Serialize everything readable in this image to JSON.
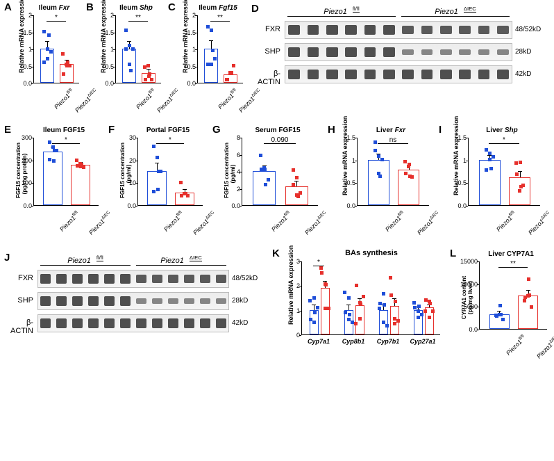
{
  "colors": {
    "group1_border": "#1f4ed8",
    "group1_fill_open": "#ffffff",
    "group2_border": "#e6302c",
    "group2_fill_open": "#ffffff",
    "dot1": "#1f4ed8",
    "dot2": "#e6302c"
  },
  "groups": {
    "g1_html": "<span class='gene-italic'>Piezo1</span><span class='sup'>fl/fl</span>",
    "g2_html": "<span class='gene-italic'>Piezo1</span><span class='sup'>ΔIEC</span>"
  },
  "panelA": {
    "label": "A",
    "title": "Ileum <span class='gene-italic'>Fxr</span>",
    "ylabel": "Relative mRNA expression",
    "ylim": [
      0,
      2.0
    ],
    "ytick_step": 0.5,
    "bars": [
      {
        "mean": 1.0,
        "err": 0.2,
        "points": [
          1.5,
          1.0,
          0.9,
          0.6,
          0.7,
          1.4
        ]
      },
      {
        "mean": 0.55,
        "err": 0.1,
        "points": [
          0.85,
          0.55,
          0.5,
          0.25,
          0.5,
          0.6
        ]
      }
    ],
    "sig": "*"
  },
  "panelB": {
    "label": "B",
    "title": "Ileum <span class='gene-italic'>Shp</span>",
    "ylabel": "Relative mRNA expression",
    "ylim": [
      0,
      2.0
    ],
    "ytick_step": 0.5,
    "bars": [
      {
        "mean": 1.0,
        "err": 0.2,
        "points": [
          1.55,
          1.1,
          1.0,
          1.0,
          0.55,
          0.35
        ]
      },
      {
        "mean": 0.28,
        "err": 0.1,
        "points": [
          0.45,
          0.5,
          0.1,
          0.1,
          0.2,
          0.25
        ]
      }
    ],
    "sig": "**"
  },
  "panelC": {
    "label": "C",
    "title": "Ileum <span class='gene-italic'>Fgf15</span>",
    "ylabel": "Relative mRNA expression",
    "ylim": [
      0,
      2.0
    ],
    "ytick_step": 0.5,
    "bars": [
      {
        "mean": 1.0,
        "err": 0.22,
        "points": [
          1.65,
          1.55,
          0.7,
          0.55,
          0.55,
          0.95
        ]
      },
      {
        "mean": 0.25,
        "err": 0.08,
        "points": [
          0.1,
          0.3,
          0.5,
          0.1,
          0.3,
          0.3
        ]
      }
    ],
    "sig": "**"
  },
  "panelD": {
    "label": "D",
    "headers": [
      "<span class='gene-italic'>Piezo1</span><span class='sup'>fl/fl</span>",
      "<span class='gene-italic'>Piezo1</span><span class='sup'>ΔIEC</span>"
    ],
    "rows": [
      {
        "name": "FXR",
        "kd": "48/52kD"
      },
      {
        "name": "SHP",
        "kd": "28kD"
      },
      {
        "name": "β-ACTIN",
        "kd": "42kD"
      }
    ],
    "lanes": 12
  },
  "panelE": {
    "label": "E",
    "title": "Ileum FGF15",
    "ylabel": "FGF15 concentration<br>(pg/mg protein)",
    "ylim": [
      0,
      300
    ],
    "ytick_step": 100,
    "bars": [
      {
        "mean": 235,
        "err": 20,
        "points": [
          278,
          255,
          240,
          200,
          195,
          240
        ]
      },
      {
        "mean": 178,
        "err": 10,
        "points": [
          196,
          182,
          168,
          172,
          170,
          180
        ]
      }
    ],
    "sig": "*"
  },
  "panelF": {
    "label": "F",
    "title": "Portal FGF15",
    "ylabel": "FGF15 concentration<br>(pg/ml)",
    "ylim": [
      0,
      30
    ],
    "ytick_step": 10,
    "bars": [
      {
        "mean": 15,
        "err": 3.5,
        "points": [
          26,
          21,
          15,
          6,
          7,
          15
        ]
      },
      {
        "mean": 5.5,
        "err": 1.2,
        "points": [
          10,
          5,
          4,
          4,
          5,
          5
        ]
      }
    ],
    "sig": "*"
  },
  "panelG": {
    "label": "G",
    "title": "Serum FGF15",
    "ylabel": "FGF15 concentration<br>(pg/ml)",
    "ylim": [
      0,
      8
    ],
    "ytick_step": 2,
    "bars": [
      {
        "mean": 4.0,
        "err": 0.6,
        "points": [
          5.8,
          4.4,
          3.0,
          4.2,
          4.2,
          2.4
        ]
      },
      {
        "mean": 2.2,
        "err": 0.6,
        "points": [
          4.1,
          1.2,
          1.4,
          2.4,
          3.2,
          1.0
        ]
      }
    ],
    "sig": "0.090"
  },
  "panelH": {
    "label": "H",
    "title": "Liver <span class='gene-italic'>Fxr</span>",
    "ylabel": "Relative mRNA expression",
    "ylim": [
      0,
      1.5
    ],
    "ytick_step": 0.5,
    "bars": [
      {
        "mean": 1.0,
        "err": 0.12,
        "points": [
          1.38,
          1.08,
          1.0,
          1.2,
          0.7,
          0.64
        ]
      },
      {
        "mean": 0.78,
        "err": 0.07,
        "points": [
          0.96,
          0.85,
          0.62,
          0.7,
          0.9,
          0.64
        ]
      }
    ],
    "sig": "ns"
  },
  "panelI": {
    "label": "I",
    "title": "Liver <span class='gene-italic'>Shp</span>",
    "ylabel": "Relative mRNA expression",
    "ylim": [
      0,
      1.5
    ],
    "ytick_step": 0.5,
    "bars": [
      {
        "mean": 1.0,
        "err": 0.08,
        "points": [
          1.22,
          1.0,
          1.06,
          0.78,
          1.14,
          0.8
        ]
      },
      {
        "mean": 0.62,
        "err": 0.12,
        "points": [
          0.92,
          0.32,
          0.44,
          0.68,
          0.94,
          0.4
        ]
      }
    ],
    "sig": "*"
  },
  "panelJ": {
    "label": "J",
    "headers": [
      "<span class='gene-italic'>Piezo1</span><span class='sup'>fl/fl</span>",
      "<span class='gene-italic'>Piezo1</span><span class='sup'>ΔIEC</span>"
    ],
    "rows": [
      {
        "name": "FXR",
        "kd": "48/52kD"
      },
      {
        "name": "SHP",
        "kd": "28kD"
      },
      {
        "name": "β-ACTIN",
        "kd": "42kD"
      }
    ],
    "lanes": 12
  },
  "panelK": {
    "label": "K",
    "title": "BAs synthesis",
    "ylabel": "Relative mRNA expression",
    "ylim": [
      0,
      3
    ],
    "ytick_step": 1,
    "genes": [
      "Cyp7a1",
      "Cyp8b1",
      "Cyp7b1",
      "Cyp27a1"
    ],
    "pairs": [
      {
        "g1": {
          "mean": 1.0,
          "err": 0.18,
          "points": [
            1.38,
            0.5,
            1.1,
            0.6,
            1.5,
            0.9
          ]
        },
        "g2": {
          "mean": 1.9,
          "err": 0.25,
          "points": [
            2.7,
            2.05,
            1.05,
            2.5,
            1.05,
            2.02
          ]
        },
        "sig": "*"
      },
      {
        "g1": {
          "mean": 1.0,
          "err": 0.2,
          "points": [
            1.7,
            1.5,
            0.5,
            0.9,
            0.6,
            0.8
          ]
        },
        "g2": {
          "mean": 1.2,
          "err": 0.25,
          "points": [
            0.45,
            0.65,
            1.55,
            2.0,
            1.3,
            1.22
          ]
        }
      },
      {
        "g1": {
          "mean": 1.0,
          "err": 0.2,
          "points": [
            1.05,
            1.65,
            0.35,
            1.25,
            0.5,
            1.2
          ]
        },
        "g2": {
          "mean": 1.15,
          "err": 0.3,
          "points": [
            2.3,
            0.45,
            0.55,
            1.6,
            0.65,
            1.35
          ]
        }
      },
      {
        "g1": {
          "mean": 1.0,
          "err": 0.1,
          "points": [
            1.3,
            0.95,
            0.8,
            1.1,
            0.7,
            1.15
          ]
        },
        "g2": {
          "mean": 1.1,
          "err": 0.1,
          "points": [
            0.95,
            1.35,
            0.95,
            1.4,
            0.7,
            1.25
          ]
        }
      }
    ]
  },
  "panelL": {
    "label": "L",
    "title": "Liver CYP7A1",
    "ylabel": "CYP7A1 content<br>(pg/mg liver)",
    "ylim": [
      0,
      15000
    ],
    "ytick_step": 5000,
    "bars": [
      {
        "mean": 3200,
        "err": 600,
        "points": [
          3000,
          3200,
          2000,
          2800,
          5200,
          3100
        ]
      },
      {
        "mean": 7300,
        "err": 1100,
        "points": [
          6200,
          7300,
          4800,
          6900,
          11000,
          7500
        ]
      }
    ],
    "sig": "**"
  }
}
